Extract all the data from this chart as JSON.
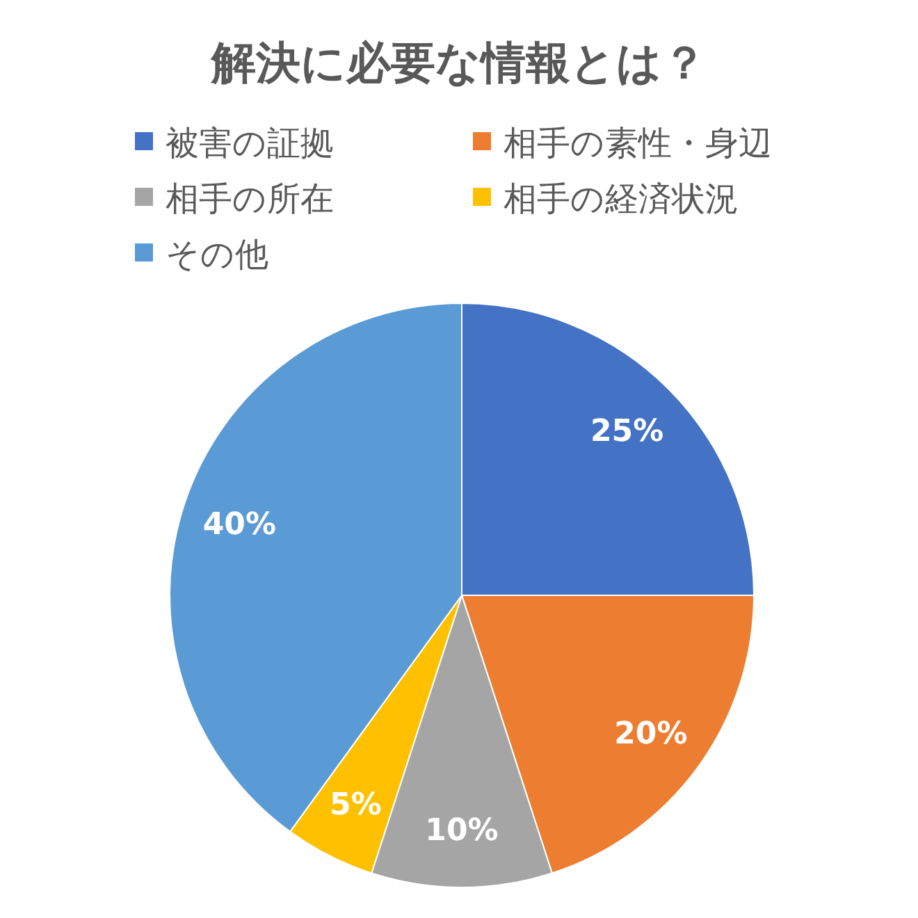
{
  "chart_data": {
    "type": "pie",
    "title": "解決に必要な情報とは？",
    "categories": [
      "被害の証拠",
      "相手の素性・身辺",
      "相手の所在",
      "相手の経済状況",
      "その他"
    ],
    "values": [
      25,
      20,
      10,
      5,
      40
    ],
    "colors": [
      "#4472c4",
      "#ed7d31",
      "#a5a5a5",
      "#ffc000",
      "#5b9bd5"
    ],
    "value_labels": [
      "25%",
      "20%",
      "10%",
      "5%",
      "40%"
    ],
    "legend": "top"
  }
}
